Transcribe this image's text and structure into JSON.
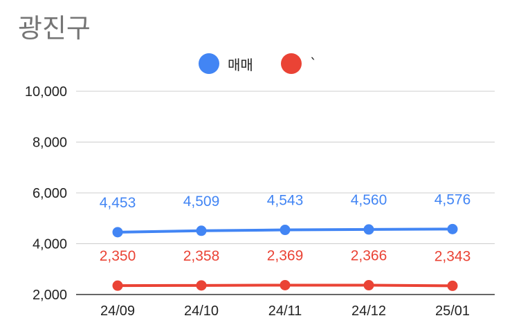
{
  "chart_data": {
    "type": "line",
    "title": "광진구",
    "categories": [
      "24/09",
      "24/10",
      "24/11",
      "24/12",
      "25/01"
    ],
    "series": [
      {
        "name": "매매",
        "color": "#4285f4",
        "values": [
          4453,
          4509,
          4543,
          4560,
          4576
        ],
        "labels": [
          "4,453",
          "4,509",
          "4,543",
          "4,560",
          "4,576"
        ]
      },
      {
        "name": "`",
        "color": "#ea4335",
        "values": [
          2350,
          2358,
          2369,
          2366,
          2343
        ],
        "labels": [
          "2,350",
          "2,358",
          "2,369",
          "2,366",
          "2,343"
        ]
      }
    ],
    "ylim": [
      2000,
      10000
    ],
    "yticks": [
      2000,
      4000,
      6000,
      8000,
      10000
    ],
    "ytick_labels": [
      "2,000",
      "4,000",
      "6,000",
      "8,000",
      "10,000"
    ],
    "grid": true,
    "legend_position": "top"
  }
}
